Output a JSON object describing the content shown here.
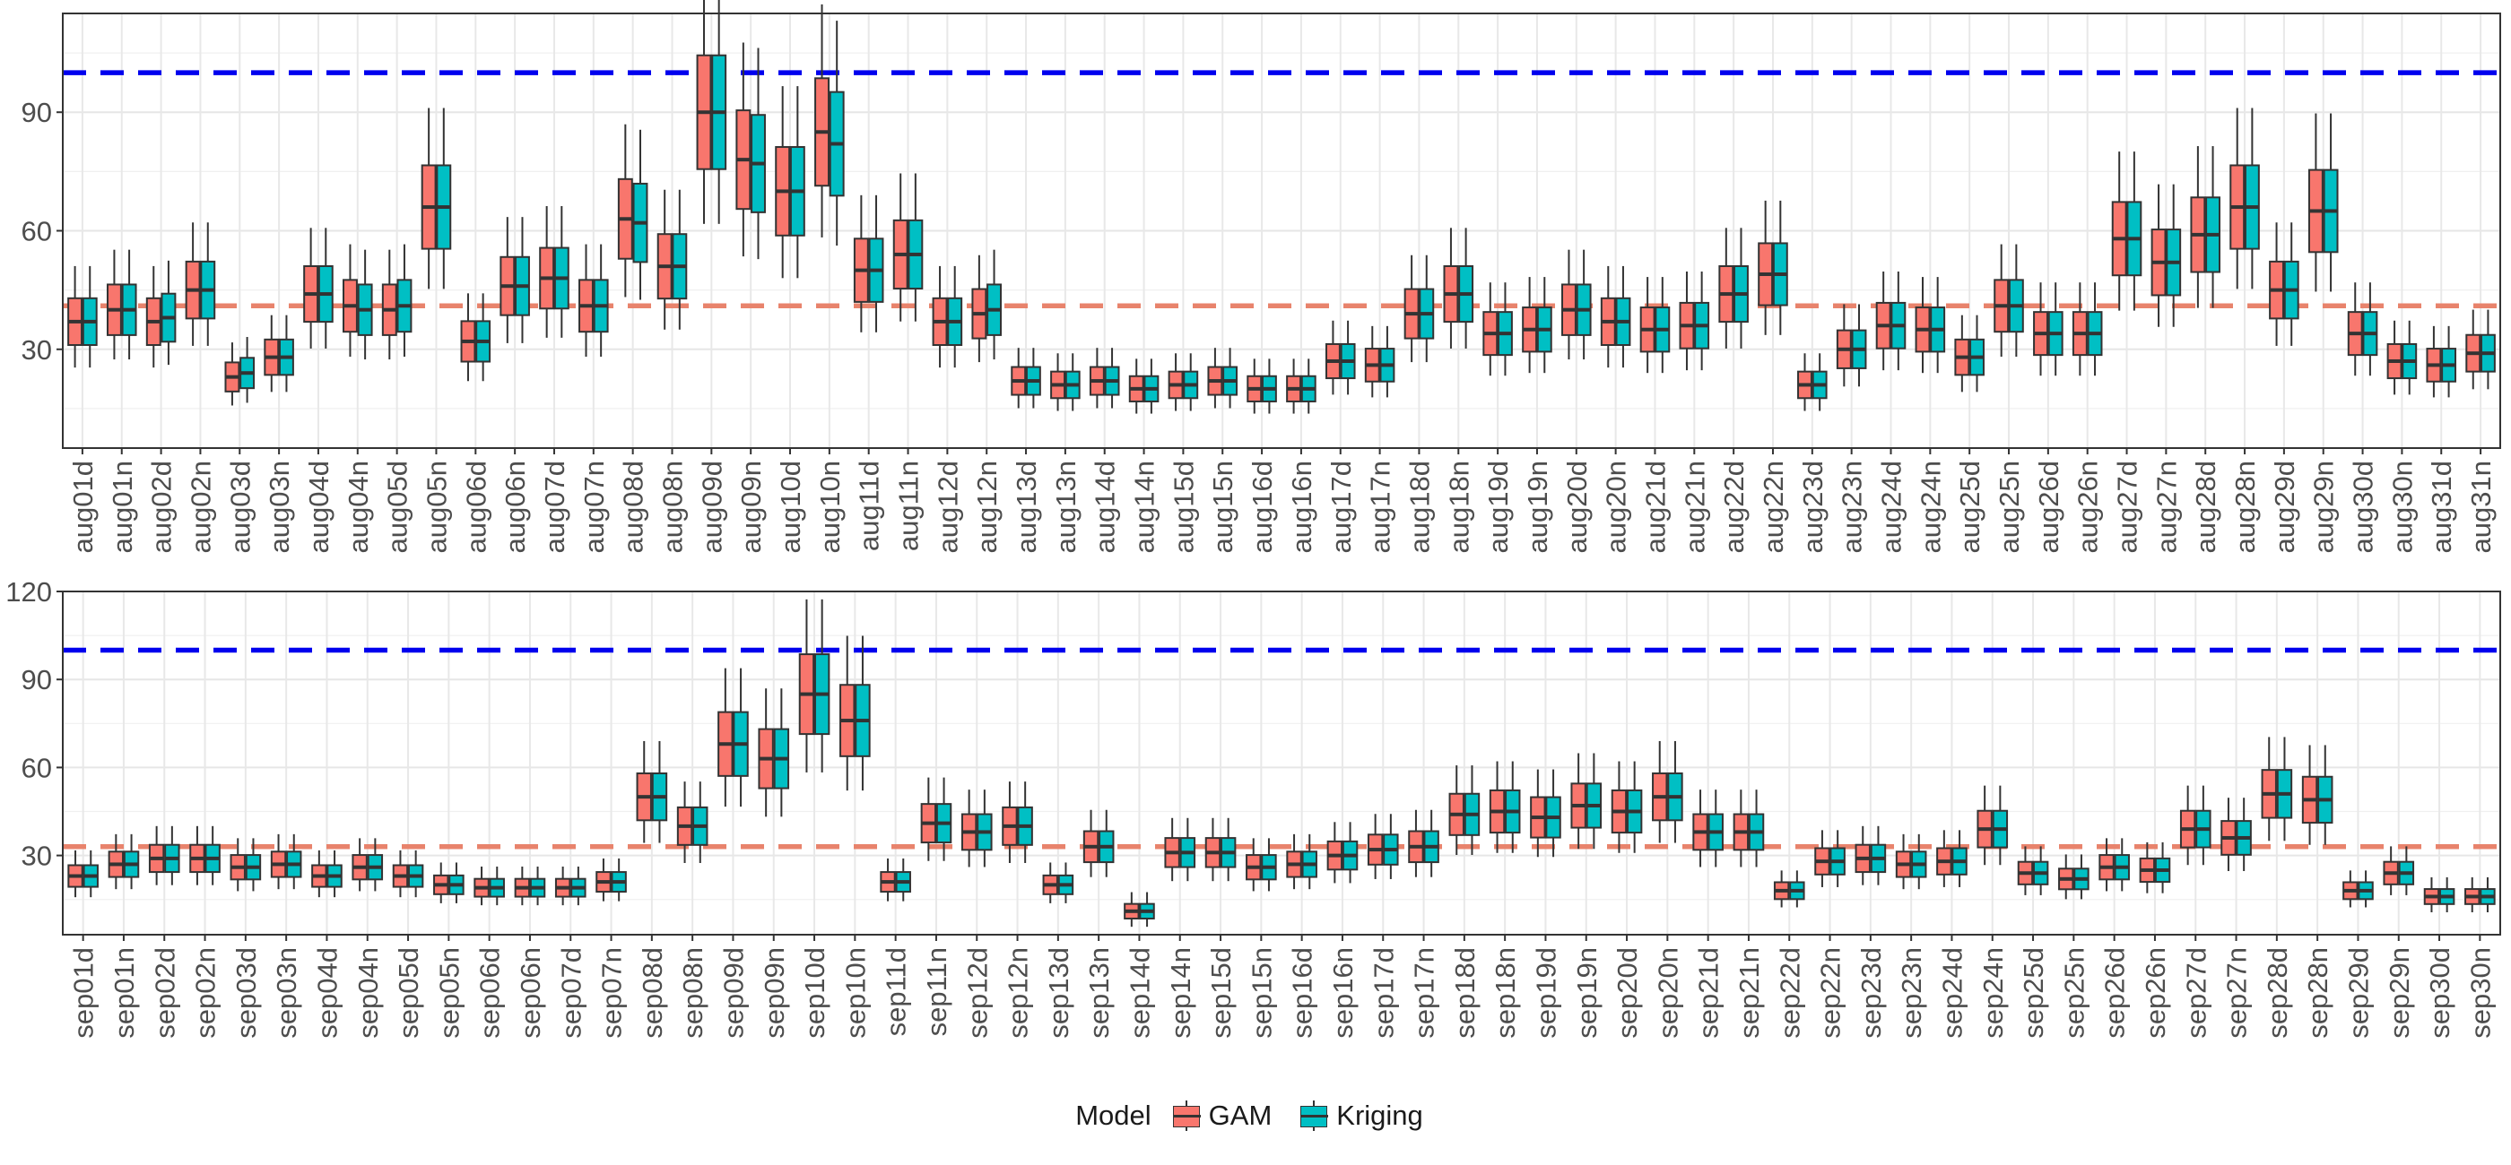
{
  "colors": {
    "gam": "#F8766D",
    "kriging": "#00BFC4",
    "ref_high": "#0000EE",
    "ref_low": "#E8836C"
  },
  "legend": {
    "title": "Model",
    "items": [
      "GAM",
      "Kriging"
    ]
  },
  "chart_data": [
    {
      "type": "boxplot",
      "title": "",
      "xlabel": "",
      "ylabel": "",
      "ylim": [
        5,
        115
      ],
      "yticks": [
        30,
        60,
        90
      ],
      "reference_lines": [
        100,
        41
      ],
      "categories": [
        "aug01d",
        "aug01n",
        "aug02d",
        "aug02n",
        "aug03d",
        "aug03n",
        "aug04d",
        "aug04n",
        "aug05d",
        "aug05n",
        "aug06d",
        "aug06n",
        "aug07d",
        "aug07n",
        "aug08d",
        "aug08n",
        "aug09d",
        "aug09n",
        "aug10d",
        "aug10n",
        "aug11d",
        "aug11n",
        "aug12d",
        "aug12n",
        "aug13d",
        "aug13n",
        "aug14d",
        "aug14n",
        "aug15d",
        "aug15n",
        "aug16d",
        "aug16n",
        "aug17d",
        "aug17n",
        "aug18d",
        "aug18n",
        "aug19d",
        "aug19n",
        "aug20d",
        "aug20n",
        "aug21d",
        "aug21n",
        "aug22d",
        "aug22n",
        "aug23d",
        "aug23n",
        "aug24d",
        "aug24n",
        "aug25d",
        "aug25n",
        "aug26d",
        "aug26n",
        "aug27d",
        "aug27n",
        "aug28d",
        "aug28n",
        "aug29d",
        "aug29n",
        "aug30d",
        "aug30n",
        "aug31d",
        "aug31n"
      ],
      "series": [
        {
          "name": "GAM",
          "medians": [
            37,
            40,
            37,
            45,
            23,
            28,
            44,
            41,
            40,
            66,
            32,
            46,
            48,
            41,
            63,
            51,
            90,
            78,
            70,
            85,
            50,
            54,
            37,
            39,
            22,
            21,
            22,
            20,
            21,
            22,
            20,
            20,
            27,
            26,
            39,
            44,
            34,
            35,
            40,
            37,
            35,
            36,
            44,
            49,
            21,
            30,
            36,
            35,
            28,
            41,
            34,
            34,
            58,
            52,
            59,
            66,
            45,
            65,
            34,
            27,
            26,
            29
          ]
        },
        {
          "name": "Kriging",
          "medians": [
            37,
            40,
            38,
            45,
            24,
            28,
            44,
            40,
            41,
            66,
            32,
            46,
            48,
            41,
            62,
            51,
            90,
            77,
            70,
            82,
            50,
            54,
            37,
            40,
            22,
            21,
            22,
            20,
            21,
            22,
            20,
            20,
            27,
            26,
            39,
            44,
            34,
            35,
            40,
            37,
            35,
            36,
            44,
            49,
            21,
            30,
            36,
            35,
            28,
            41,
            34,
            34,
            58,
            52,
            59,
            66,
            45,
            65,
            34,
            27,
            26,
            29
          ]
        }
      ]
    },
    {
      "type": "boxplot",
      "title": "",
      "xlabel": "",
      "ylabel": "",
      "ylim": [
        3,
        120
      ],
      "yticks": [
        30,
        60,
        90,
        120
      ],
      "reference_lines": [
        100,
        33
      ],
      "categories": [
        "sep01d",
        "sep01n",
        "sep02d",
        "sep02n",
        "sep03d",
        "sep03n",
        "sep04d",
        "sep04n",
        "sep05d",
        "sep05n",
        "sep06d",
        "sep06n",
        "sep07d",
        "sep07n",
        "sep08d",
        "sep08n",
        "sep09d",
        "sep09n",
        "sep10d",
        "sep10n",
        "sep11d",
        "sep11n",
        "sep12d",
        "sep12n",
        "sep13d",
        "sep13n",
        "sep14d",
        "sep14n",
        "sep15d",
        "sep15n",
        "sep16d",
        "sep16n",
        "sep17d",
        "sep17n",
        "sep18d",
        "sep18n",
        "sep19d",
        "sep19n",
        "sep20d",
        "sep20n",
        "sep21d",
        "sep21n",
        "sep22d",
        "sep22n",
        "sep23d",
        "sep23n",
        "sep24d",
        "sep24n",
        "sep25d",
        "sep25n",
        "sep26d",
        "sep26n",
        "sep27d",
        "sep27n",
        "sep28d",
        "sep28n",
        "sep29d",
        "sep29n",
        "sep30d",
        "sep30n"
      ],
      "series": [
        {
          "name": "GAM",
          "medians": [
            23,
            27,
            29,
            29,
            26,
            27,
            23,
            26,
            23,
            20,
            19,
            19,
            19,
            21,
            50,
            40,
            68,
            63,
            85,
            76,
            21,
            41,
            38,
            40,
            20,
            33,
            11,
            31,
            31,
            26,
            27,
            30,
            32,
            33,
            44,
            45,
            43,
            47,
            45,
            50,
            38,
            38,
            18,
            28,
            29,
            27,
            28,
            39,
            24,
            22,
            26,
            25,
            39,
            36,
            51,
            49,
            18,
            24,
            16,
            16
          ]
        },
        {
          "name": "Kriging",
          "medians": [
            23,
            27,
            29,
            29,
            26,
            27,
            23,
            26,
            23,
            20,
            19,
            19,
            19,
            21,
            50,
            40,
            68,
            63,
            85,
            76,
            21,
            41,
            38,
            40,
            20,
            33,
            11,
            31,
            31,
            26,
            27,
            30,
            32,
            33,
            44,
            45,
            43,
            47,
            45,
            50,
            38,
            38,
            18,
            28,
            29,
            27,
            28,
            39,
            24,
            22,
            26,
            25,
            39,
            36,
            51,
            49,
            18,
            24,
            16,
            16
          ]
        }
      ]
    }
  ]
}
